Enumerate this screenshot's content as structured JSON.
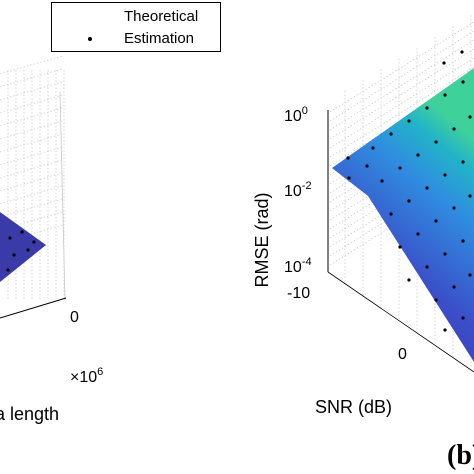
{
  "chart_data": [
    {
      "type": "surface",
      "panel": "",
      "xlabel": "Data length",
      "x_exponent_label": "×10",
      "x_exponent": "6",
      "x_ticks": [
        "0"
      ],
      "surface_color": "#3a3aa8",
      "legend": {
        "placement": "top-right",
        "items": [
          {
            "label": "Theoretical",
            "marker": "surface"
          },
          {
            "label": "Estimation",
            "marker": "dot"
          }
        ]
      }
    },
    {
      "type": "surface",
      "panel": "(b)",
      "xlabel": "SNR (dB)",
      "ylabel": "RMSE (rad)",
      "z_scale": "log",
      "z_ticks": [
        {
          "base": "10",
          "exp": "0"
        },
        {
          "base": "10",
          "exp": "-2"
        },
        {
          "base": "10",
          "exp": "-4"
        }
      ],
      "x_ticks": [
        "-10",
        "0"
      ],
      "colormap": [
        "#3a2a9e",
        "#3b5bd6",
        "#2f8ee0",
        "#22b3c8",
        "#3fd19a"
      ]
    }
  ]
}
